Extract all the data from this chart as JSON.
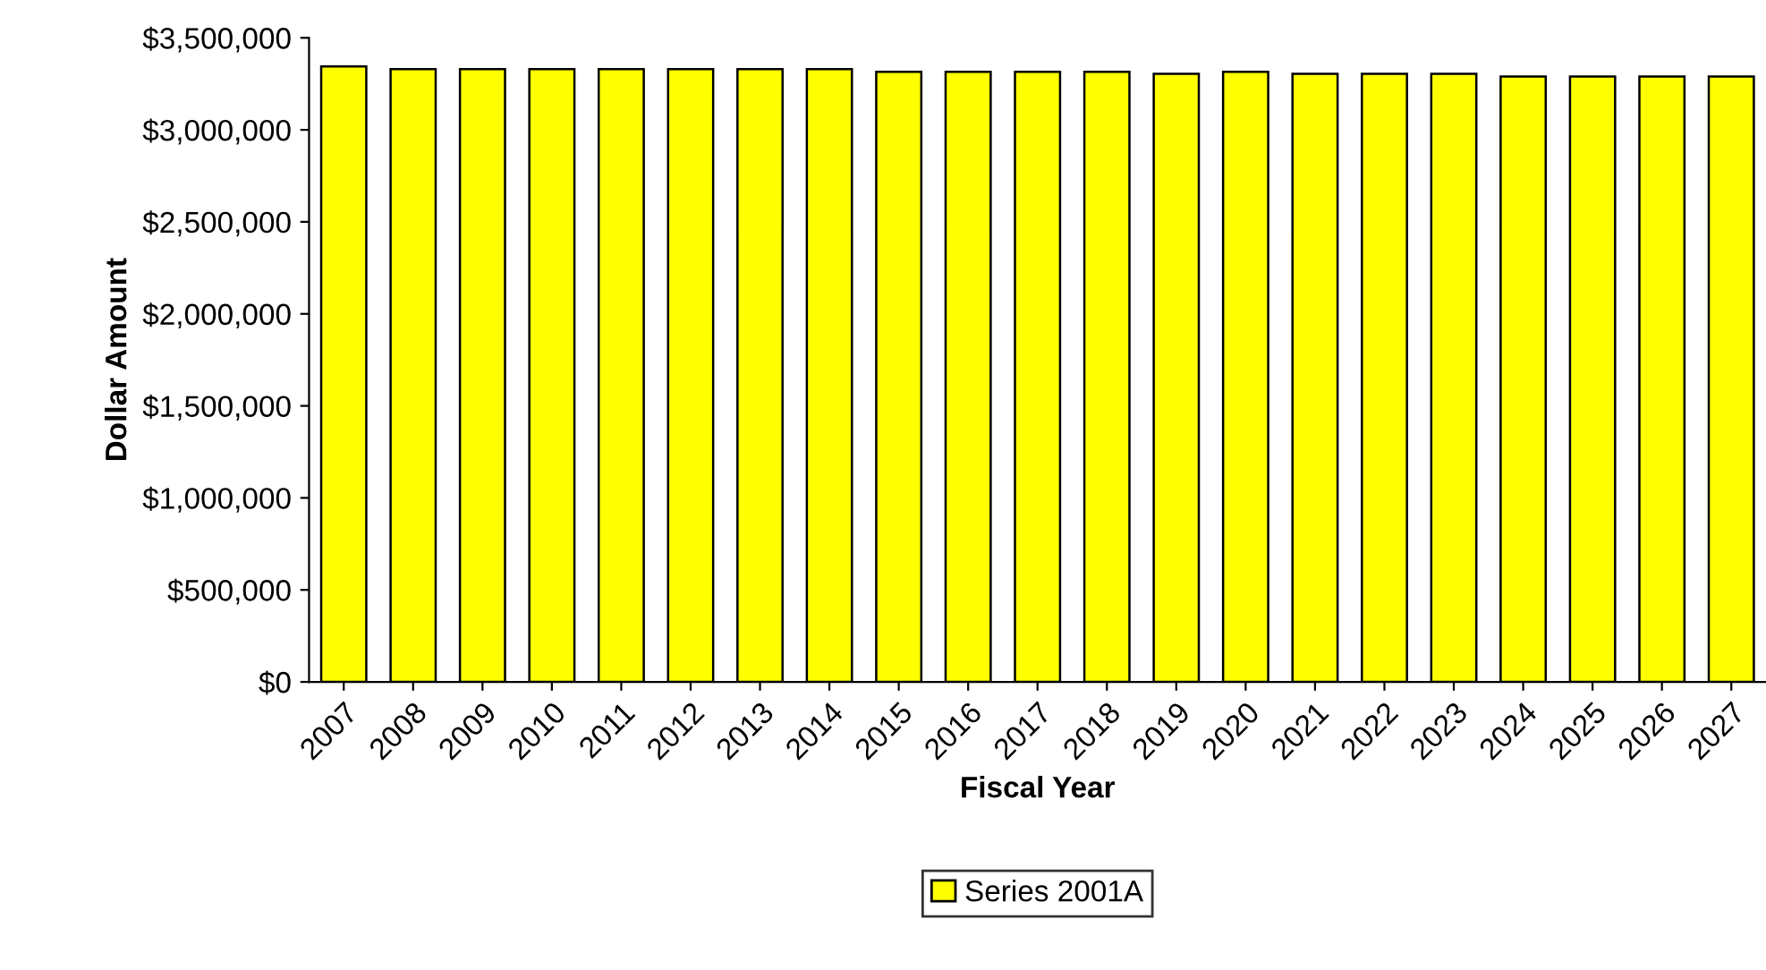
{
  "chart_data": {
    "type": "bar",
    "xlabel": "Fiscal Year",
    "ylabel": "Dollar Amount",
    "categories": [
      "2007",
      "2008",
      "2009",
      "2010",
      "2011",
      "2012",
      "2013",
      "2014",
      "2015",
      "2016",
      "2017",
      "2018",
      "2019",
      "2020",
      "2021",
      "2022",
      "2023",
      "2024",
      "2025",
      "2026",
      "2027"
    ],
    "series": [
      {
        "name": "Series 2001A",
        "color": "#ffff00",
        "values": [
          3345000,
          3330000,
          3330000,
          3330000,
          3330000,
          3330000,
          3330000,
          3330000,
          3315000,
          3315000,
          3315000,
          3315000,
          3305000,
          3315000,
          3305000,
          3305000,
          3305000,
          3290000,
          3290000,
          3290000,
          3290000
        ]
      }
    ],
    "ylim": [
      0,
      3500000
    ],
    "yticks": [
      {
        "value": 0,
        "label": "$0"
      },
      {
        "value": 500000,
        "label": "$500,000"
      },
      {
        "value": 1000000,
        "label": "$1,000,000"
      },
      {
        "value": 1500000,
        "label": "$1,500,000"
      },
      {
        "value": 2000000,
        "label": "$2,000,000"
      },
      {
        "value": 2500000,
        "label": "$2,500,000"
      },
      {
        "value": 3000000,
        "label": "$3,000,000"
      },
      {
        "value": 3500000,
        "label": "$3,500,000"
      }
    ],
    "grid": false,
    "legend": "bottom"
  }
}
